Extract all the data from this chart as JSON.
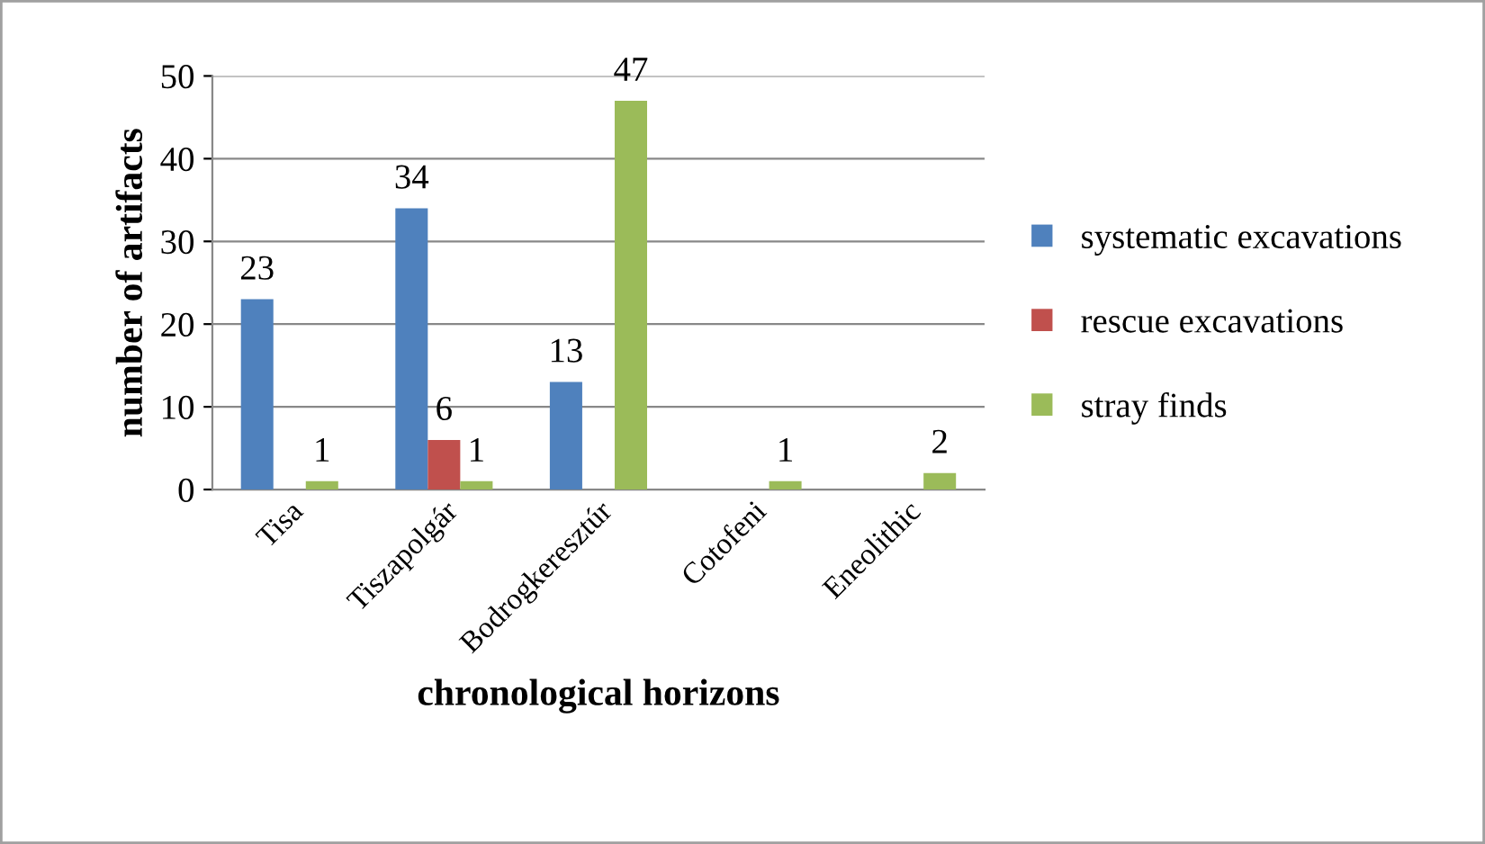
{
  "chart_data": {
    "type": "bar",
    "xlabel": "chronological horizons",
    "ylabel": "number of artifacts",
    "categories": [
      "Tisa",
      "Tiszapolgár",
      "Bodrogkeresztúr",
      "Cotofeni",
      "Eneolithic"
    ],
    "series": [
      {
        "name": "systematic excavations",
        "color": "#4f81bd",
        "values": [
          23,
          34,
          13,
          null,
          null
        ]
      },
      {
        "name": "rescue excavations",
        "color": "#c0504d",
        "values": [
          null,
          6,
          null,
          null,
          null
        ]
      },
      {
        "name": "stray finds",
        "color": "#9bbb59",
        "values": [
          1,
          1,
          47,
          1,
          2
        ]
      }
    ],
    "ylim": [
      0,
      50
    ],
    "yticks": [
      0,
      10,
      20,
      30,
      40,
      50
    ],
    "grid": "y",
    "legend": "right",
    "data_labels": true
  }
}
